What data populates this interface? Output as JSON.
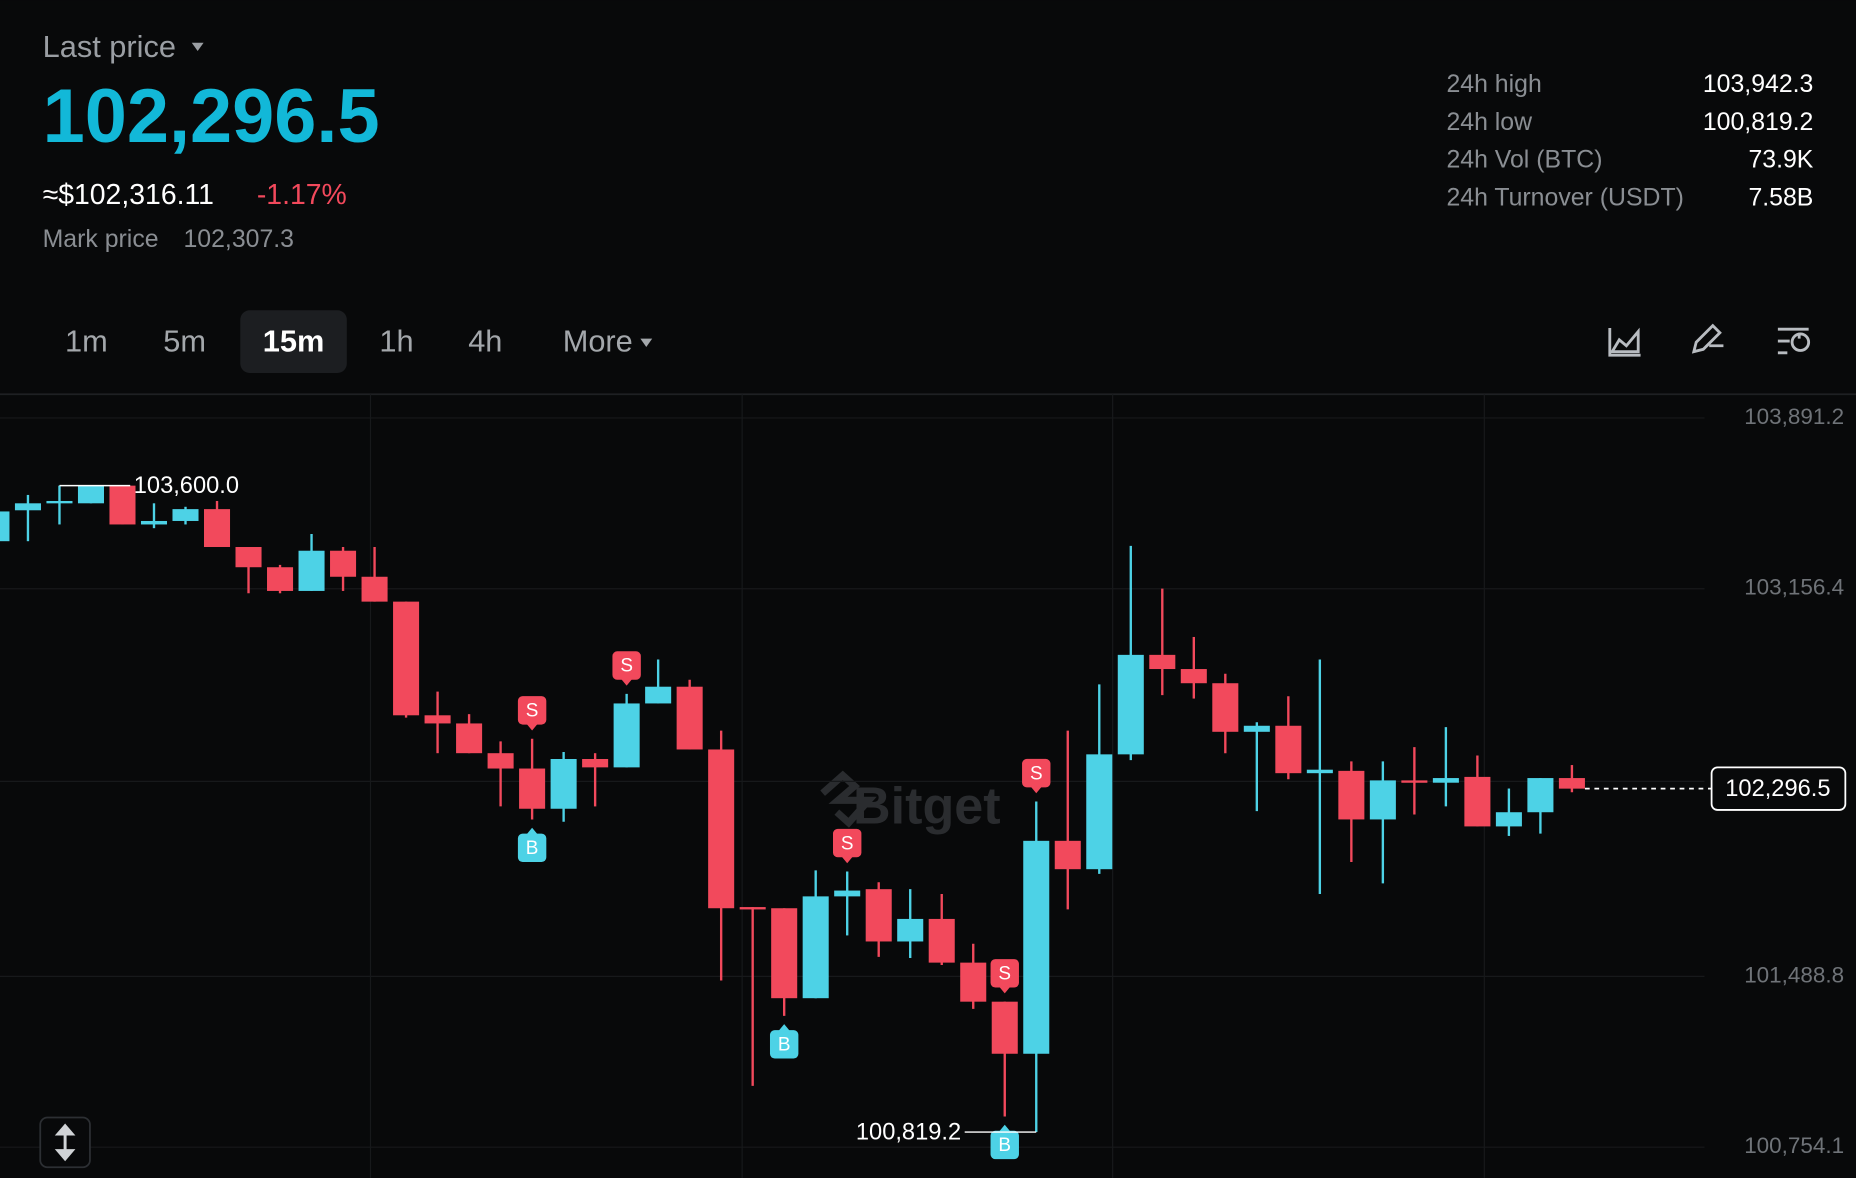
{
  "header": {
    "last_price_label": "Last price",
    "last_price": "102,296.5",
    "approx_usd": "≈$102,316.11",
    "change": "-1.17%",
    "mark_price_label": "Mark price",
    "mark_price": "102,307.3"
  },
  "stats": [
    {
      "label": "24h high",
      "value": "103,942.3"
    },
    {
      "label": "24h low",
      "value": "100,819.2"
    },
    {
      "label": "24h Vol (BTC)",
      "value": "73.9K"
    },
    {
      "label": "24h Turnover (USDT)",
      "value": "7.58B"
    }
  ],
  "tabs": [
    "1m",
    "5m",
    "15m",
    "1h",
    "4h",
    "More"
  ],
  "active_tab": 2,
  "chart_data": {
    "type": "candlestick",
    "watermark": "Bitget",
    "up_color": "#4dd2e6",
    "down_color": "#f2495c",
    "ylim": [
      100622,
      103993
    ],
    "yticks": [
      {
        "value": 103891.2,
        "label": "103,891.2"
      },
      {
        "value": 103156.4,
        "label": "103,156.4"
      },
      {
        "value": 101488.8,
        "label": "101,488.8"
      },
      {
        "value": 100754.1,
        "label": "100,754.1"
      }
    ],
    "grid": true,
    "open": [
      103361,
      103494,
      103524,
      103524,
      103600,
      103433,
      103448,
      103499,
      103336,
      103249,
      103147,
      103320,
      103208,
      103101,
      102612,
      102577,
      102449,
      102383,
      102210,
      102424,
      102388,
      102663,
      102735,
      102465,
      101787,
      101782,
      101395,
      101833,
      101864,
      101639,
      101736,
      101548,
      101380,
      101156,
      102072,
      101950,
      102444,
      102872,
      102811,
      102750,
      102541,
      102567,
      102363,
      102373,
      102164,
      102332,
      102322,
      102347,
      102134,
      102195,
      102342
    ],
    "high": [
      103489,
      103560,
      103600,
      103600,
      103600,
      103524,
      103509,
      103534,
      103336,
      103259,
      103392,
      103336,
      103336,
      103101,
      102714,
      102617,
      102500,
      102511,
      102454,
      102449,
      102704,
      102852,
      102765,
      102546,
      101787,
      101782,
      101945,
      101940,
      101894,
      101864,
      101843,
      101629,
      101380,
      102241,
      102546,
      102745,
      103341,
      103157,
      102949,
      102791,
      102582,
      102694,
      102852,
      102414,
      102414,
      102475,
      102561,
      102439,
      102297,
      102342,
      102398
    ],
    "low": [
      103361,
      103361,
      103433,
      103524,
      103433,
      103417,
      103433,
      103336,
      103137,
      103137,
      103147,
      103147,
      103101,
      102602,
      102449,
      102449,
      102220,
      102164,
      102154,
      102220,
      102388,
      102663,
      102465,
      101471,
      101018,
      101319,
      101395,
      101665,
      101573,
      101568,
      101538,
      101349,
      100886,
      100819.2,
      101777,
      101930,
      102419,
      102699,
      102684,
      102449,
      102200,
      102337,
      101843,
      101981,
      101889,
      102185,
      102220,
      102134,
      102093,
      102103,
      102281
    ],
    "close": [
      103489,
      103524,
      103534,
      103600,
      103433,
      103448,
      103499,
      103336,
      103249,
      103147,
      103320,
      103208,
      103101,
      102612,
      102577,
      102449,
      102383,
      102210,
      102424,
      102388,
      102663,
      102735,
      102465,
      101782,
      101777,
      101395,
      101833,
      101858,
      101639,
      101736,
      101548,
      101380,
      101156,
      102072,
      101950,
      102444,
      102872,
      102811,
      102750,
      102541,
      102567,
      102363,
      102378,
      102164,
      102332,
      102322,
      102342,
      102134,
      102195,
      102342,
      102296.5
    ],
    "signals": [
      null,
      null,
      null,
      null,
      null,
      null,
      null,
      null,
      null,
      null,
      null,
      null,
      null,
      null,
      null,
      null,
      null,
      [
        "S",
        "B"
      ],
      null,
      null,
      [
        "S"
      ],
      null,
      null,
      null,
      null,
      [
        "B"
      ],
      null,
      [
        "S"
      ],
      null,
      null,
      null,
      null,
      [
        "S",
        "B"
      ],
      [
        "S"
      ],
      null,
      null,
      null,
      null,
      null,
      null,
      null,
      null,
      null,
      null,
      null,
      null,
      null,
      null,
      null,
      null,
      null
    ],
    "high_label": {
      "value": 103600,
      "label": "103,600.0"
    },
    "low_label": {
      "value": 100819.2,
      "label": "100,819.2"
    },
    "last_label": {
      "value": 102296.5,
      "label": "102,296.5"
    }
  }
}
